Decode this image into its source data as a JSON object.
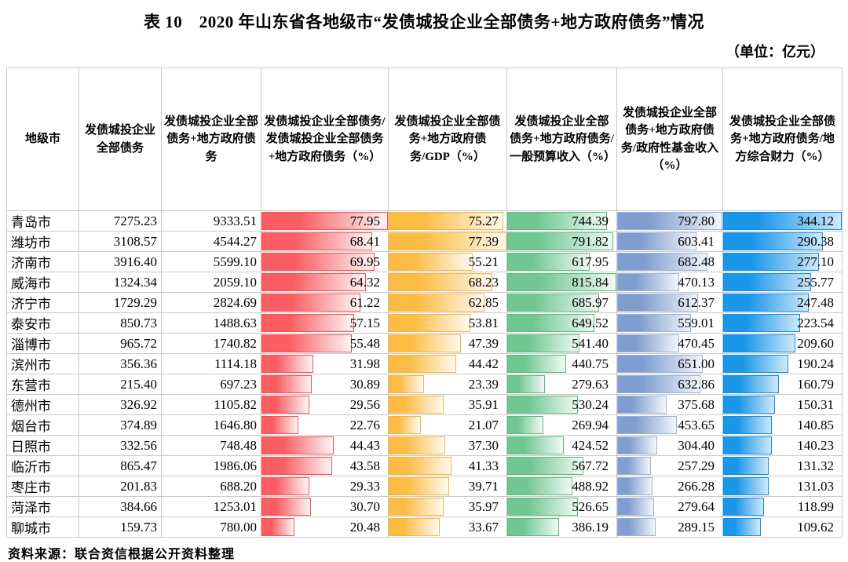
{
  "title": "表 10　2020 年山东省各地级市“发债城投企业全部债务+地方政府债务”情况",
  "unit_label": "（单位：亿元）",
  "source_note": "资料来源：联合资信根据公开资料整理",
  "chart_data": {
    "type": "table",
    "title": "2020 年山东省各地级市“发债城投企业全部债务+地方政府债务”情况",
    "unit": "亿元",
    "columns": [
      "地级市",
      "发债城投企业全部债务",
      "发债城投企业全部债务+地方政府债务",
      "发债城投企业全部债务/发债城投企业全部债务+地方政府债务（%）",
      "发债城投企业全部债务+地方政府债务/GDP（%）",
      "发债城投企业全部债务+地方政府债务/一般预算收入（%）",
      "发债城投企业全部债务+地方政府债务/政府性基金收入（%）",
      "发债城投企业全部债务+地方政府债务/地方综合财力（%）"
    ],
    "bar_columns_start_index": 3,
    "bar_colors": [
      {
        "name": "red",
        "start": "#fa5d62",
        "end": "#fff6f6",
        "border": "#ff4b51"
      },
      {
        "name": "orange",
        "start": "#fcbc44",
        "end": "#fffaf0",
        "border": "#f8b33a"
      },
      {
        "name": "green",
        "start": "#71c793",
        "end": "#f1faf4",
        "border": "#5abb7b"
      },
      {
        "name": "steel-blue",
        "start": "#7f9ecf",
        "end": "#f2f6fb",
        "border": "#98b4da"
      },
      {
        "name": "azure",
        "start": "#1b97ea",
        "end": "#cfe9fb",
        "border": "#0f8ee1"
      }
    ],
    "rows": [
      [
        "青岛市",
        "7275.23",
        "9333.51",
        "77.95",
        "75.27",
        "744.39",
        "797.80",
        "344.12"
      ],
      [
        "潍坊市",
        "3108.57",
        "4544.27",
        "68.41",
        "77.39",
        "791.82",
        "603.41",
        "290.38"
      ],
      [
        "济南市",
        "3916.40",
        "5599.10",
        "69.95",
        "55.21",
        "617.95",
        "682.48",
        "277.10"
      ],
      [
        "威海市",
        "1324.34",
        "2059.10",
        "64.32",
        "68.23",
        "815.84",
        "470.13",
        "255.77"
      ],
      [
        "济宁市",
        "1729.29",
        "2824.69",
        "61.22",
        "62.85",
        "685.97",
        "612.37",
        "247.48"
      ],
      [
        "泰安市",
        "850.73",
        "1488.63",
        "57.15",
        "53.81",
        "649.52",
        "559.01",
        "223.54"
      ],
      [
        "淄博市",
        "965.72",
        "1740.82",
        "55.48",
        "47.39",
        "541.40",
        "470.45",
        "209.60"
      ],
      [
        "滨州市",
        "356.36",
        "1114.18",
        "31.98",
        "44.42",
        "440.75",
        "651.00",
        "190.24"
      ],
      [
        "东营市",
        "215.40",
        "697.23",
        "30.89",
        "23.39",
        "279.63",
        "632.86",
        "160.79"
      ],
      [
        "德州市",
        "326.92",
        "1105.82",
        "29.56",
        "35.91",
        "530.24",
        "375.68",
        "150.31"
      ],
      [
        "烟台市",
        "374.89",
        "1646.80",
        "22.76",
        "21.07",
        "269.94",
        "453.65",
        "140.85"
      ],
      [
        "日照市",
        "332.56",
        "748.48",
        "44.43",
        "37.30",
        "424.52",
        "304.40",
        "140.23"
      ],
      [
        "临沂市",
        "865.47",
        "1986.06",
        "43.58",
        "41.33",
        "567.72",
        "257.29",
        "131.32"
      ],
      [
        "枣庄市",
        "201.83",
        "688.20",
        "29.33",
        "39.71",
        "488.92",
        "266.28",
        "131.03"
      ],
      [
        "菏泽市",
        "384.66",
        "1253.01",
        "30.70",
        "35.97",
        "526.65",
        "279.64",
        "118.99"
      ],
      [
        "聊城市",
        "159.73",
        "780.00",
        "20.48",
        "33.67",
        "386.19",
        "289.15",
        "109.62"
      ]
    ]
  }
}
